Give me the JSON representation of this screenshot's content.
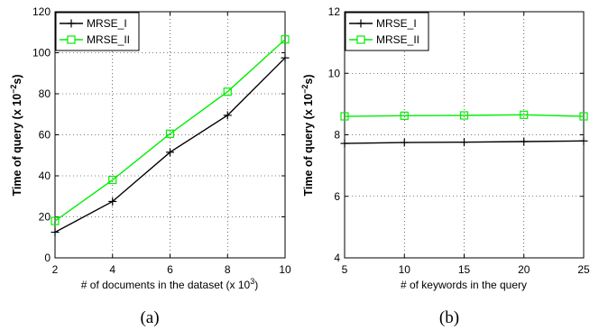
{
  "chart_data": [
    {
      "type": "line",
      "panel_caption": "(a)",
      "xlabel": "# of documents in the dataset (x 10",
      "xlabel_sup": "3",
      "xlabel_tail": ")",
      "ylabel": "Time of query (x 10",
      "ylabel_sup": "−2",
      "ylabel_tail": "s)",
      "xlim": [
        2,
        10
      ],
      "ylim": [
        0,
        120
      ],
      "xticks": [
        2,
        4,
        6,
        8,
        10
      ],
      "yticks": [
        0,
        20,
        40,
        60,
        80,
        100,
        120
      ],
      "grid": true,
      "legend_position": "top-left",
      "series": [
        {
          "name": "MRSE_I",
          "color": "#000000",
          "marker": "plus",
          "x": [
            2,
            4,
            6,
            8,
            10
          ],
          "y": [
            12.5,
            27.5,
            51.5,
            69.5,
            97.5
          ]
        },
        {
          "name": "MRSE_II",
          "color": "#00ee00",
          "marker": "square",
          "x": [
            2,
            4,
            6,
            8,
            10
          ],
          "y": [
            18,
            38,
            60.5,
            81,
            106.5
          ]
        }
      ]
    },
    {
      "type": "line",
      "panel_caption": "(b)",
      "xlabel": "# of keywords in the query",
      "ylabel": "Time of query (x 10",
      "ylabel_sup": "−2",
      "ylabel_tail": "s)",
      "xlim": [
        5,
        25
      ],
      "ylim": [
        4,
        12
      ],
      "xticks": [
        5,
        10,
        15,
        20,
        25
      ],
      "yticks": [
        4,
        6,
        8,
        10,
        12
      ],
      "grid": true,
      "legend_position": "top-left",
      "series": [
        {
          "name": "MRSE_I",
          "color": "#000000",
          "marker": "plus",
          "x": [
            5,
            10,
            15,
            20,
            25
          ],
          "y": [
            7.72,
            7.75,
            7.76,
            7.78,
            7.8
          ]
        },
        {
          "name": "MRSE_II",
          "color": "#00ee00",
          "marker": "square",
          "x": [
            5,
            10,
            15,
            20,
            25
          ],
          "y": [
            8.6,
            8.62,
            8.63,
            8.65,
            8.6
          ]
        }
      ]
    }
  ]
}
